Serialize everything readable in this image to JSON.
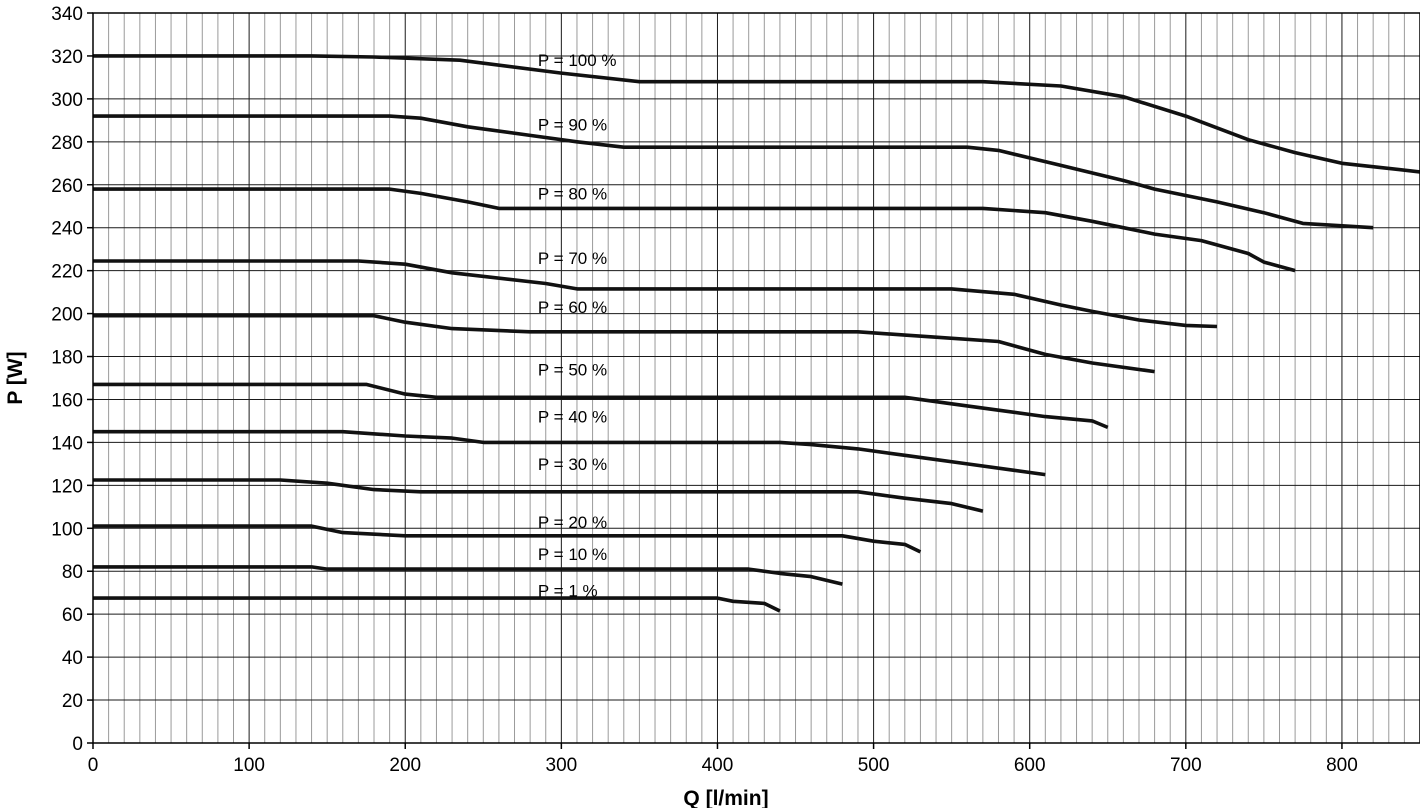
{
  "chart_data": {
    "type": "line",
    "title": "",
    "xlabel": "Q [l/min]",
    "ylabel": "P [W]",
    "xlim": [
      0,
      850
    ],
    "ylim": [
      0,
      340
    ],
    "x_ticks": [
      0,
      100,
      200,
      300,
      400,
      500,
      600,
      700,
      800
    ],
    "y_ticks": [
      0,
      20,
      40,
      60,
      80,
      100,
      120,
      140,
      160,
      180,
      200,
      220,
      240,
      260,
      280,
      300,
      320,
      340
    ],
    "minor_x_step": 10,
    "grid": true,
    "legend": "none",
    "series": [
      {
        "name": "P = 100 %",
        "label_at": [
          285,
          318
        ],
        "points": [
          [
            0,
            320
          ],
          [
            140,
            320
          ],
          [
            180,
            319.5
          ],
          [
            235,
            318
          ],
          [
            300,
            312
          ],
          [
            350,
            308
          ],
          [
            570,
            308
          ],
          [
            620,
            306
          ],
          [
            660,
            301
          ],
          [
            700,
            292
          ],
          [
            740,
            281
          ],
          [
            770,
            275
          ],
          [
            800,
            270
          ],
          [
            850,
            266
          ]
        ]
      },
      {
        "name": "P = 90 %",
        "label_at": [
          285,
          288
        ],
        "points": [
          [
            0,
            292
          ],
          [
            190,
            292
          ],
          [
            210,
            291
          ],
          [
            240,
            287
          ],
          [
            280,
            283
          ],
          [
            310,
            280
          ],
          [
            340,
            277.5
          ],
          [
            560,
            277.5
          ],
          [
            580,
            276
          ],
          [
            620,
            269
          ],
          [
            660,
            262
          ],
          [
            680,
            258
          ],
          [
            720,
            252
          ],
          [
            750,
            247
          ],
          [
            775,
            242
          ],
          [
            820,
            240
          ]
        ]
      },
      {
        "name": "P = 80 %",
        "label_at": [
          285,
          256
        ],
        "points": [
          [
            0,
            258
          ],
          [
            190,
            258
          ],
          [
            210,
            256
          ],
          [
            240,
            252
          ],
          [
            260,
            249
          ],
          [
            570,
            249
          ],
          [
            610,
            247
          ],
          [
            640,
            243
          ],
          [
            660,
            240
          ],
          [
            680,
            237
          ],
          [
            710,
            234
          ],
          [
            740,
            228
          ],
          [
            750,
            224
          ],
          [
            770,
            220
          ]
        ]
      },
      {
        "name": "P = 70 %",
        "label_at": [
          285,
          226
        ],
        "points": [
          [
            0,
            224.5
          ],
          [
            170,
            224.5
          ],
          [
            200,
            223
          ],
          [
            230,
            219
          ],
          [
            290,
            214
          ],
          [
            310,
            211.5
          ],
          [
            550,
            211.5
          ],
          [
            590,
            209
          ],
          [
            620,
            204
          ],
          [
            640,
            201
          ],
          [
            670,
            197
          ],
          [
            700,
            194.5
          ],
          [
            720,
            194
          ]
        ]
      },
      {
        "name": "P = 60 %",
        "label_at": [
          285,
          203
        ],
        "points": [
          [
            0,
            199
          ],
          [
            180,
            199
          ],
          [
            200,
            196
          ],
          [
            230,
            193
          ],
          [
            280,
            191.5
          ],
          [
            490,
            191.5
          ],
          [
            520,
            190
          ],
          [
            540,
            189
          ],
          [
            580,
            187
          ],
          [
            610,
            181
          ],
          [
            640,
            177
          ],
          [
            680,
            173
          ]
        ]
      },
      {
        "name": "P = 50 %",
        "label_at": [
          285,
          174
        ],
        "points": [
          [
            0,
            167
          ],
          [
            175,
            167
          ],
          [
            200,
            162.5
          ],
          [
            220,
            161
          ],
          [
            520,
            161
          ],
          [
            550,
            158
          ],
          [
            580,
            155
          ],
          [
            610,
            152
          ],
          [
            640,
            150
          ],
          [
            650,
            147
          ]
        ]
      },
      {
        "name": "P = 40 %",
        "label_at": [
          285,
          152
        ],
        "points": [
          [
            0,
            145
          ],
          [
            160,
            145
          ],
          [
            200,
            143
          ],
          [
            230,
            142
          ],
          [
            250,
            140
          ],
          [
            440,
            140
          ],
          [
            460,
            139
          ],
          [
            490,
            137
          ],
          [
            520,
            134
          ],
          [
            560,
            130
          ],
          [
            590,
            127
          ],
          [
            610,
            125
          ]
        ]
      },
      {
        "name": "P = 30 %",
        "label_at": [
          285,
          130
        ],
        "points": [
          [
            0,
            122.5
          ],
          [
            120,
            122.5
          ],
          [
            150,
            121
          ],
          [
            180,
            118
          ],
          [
            210,
            117
          ],
          [
            490,
            117
          ],
          [
            520,
            114
          ],
          [
            550,
            111.5
          ],
          [
            570,
            108
          ]
        ]
      },
      {
        "name": "P = 20 %",
        "label_at": [
          285,
          103
        ],
        "points": [
          [
            0,
            101
          ],
          [
            140,
            101
          ],
          [
            160,
            98
          ],
          [
            200,
            96.5
          ],
          [
            480,
            96.5
          ],
          [
            500,
            94
          ],
          [
            520,
            92.5
          ],
          [
            530,
            89
          ]
        ]
      },
      {
        "name": "P = 10 %",
        "label_at": [
          285,
          88
        ],
        "points": [
          [
            0,
            82
          ],
          [
            140,
            82
          ],
          [
            150,
            81
          ],
          [
            420,
            81
          ],
          [
            440,
            79
          ],
          [
            460,
            77.5
          ],
          [
            480,
            74
          ]
        ]
      },
      {
        "name": "P = 1 %",
        "label_at": [
          285,
          71
        ],
        "points": [
          [
            0,
            67.5
          ],
          [
            400,
            67.5
          ],
          [
            410,
            66
          ],
          [
            430,
            65
          ],
          [
            440,
            61.5
          ]
        ]
      }
    ]
  }
}
